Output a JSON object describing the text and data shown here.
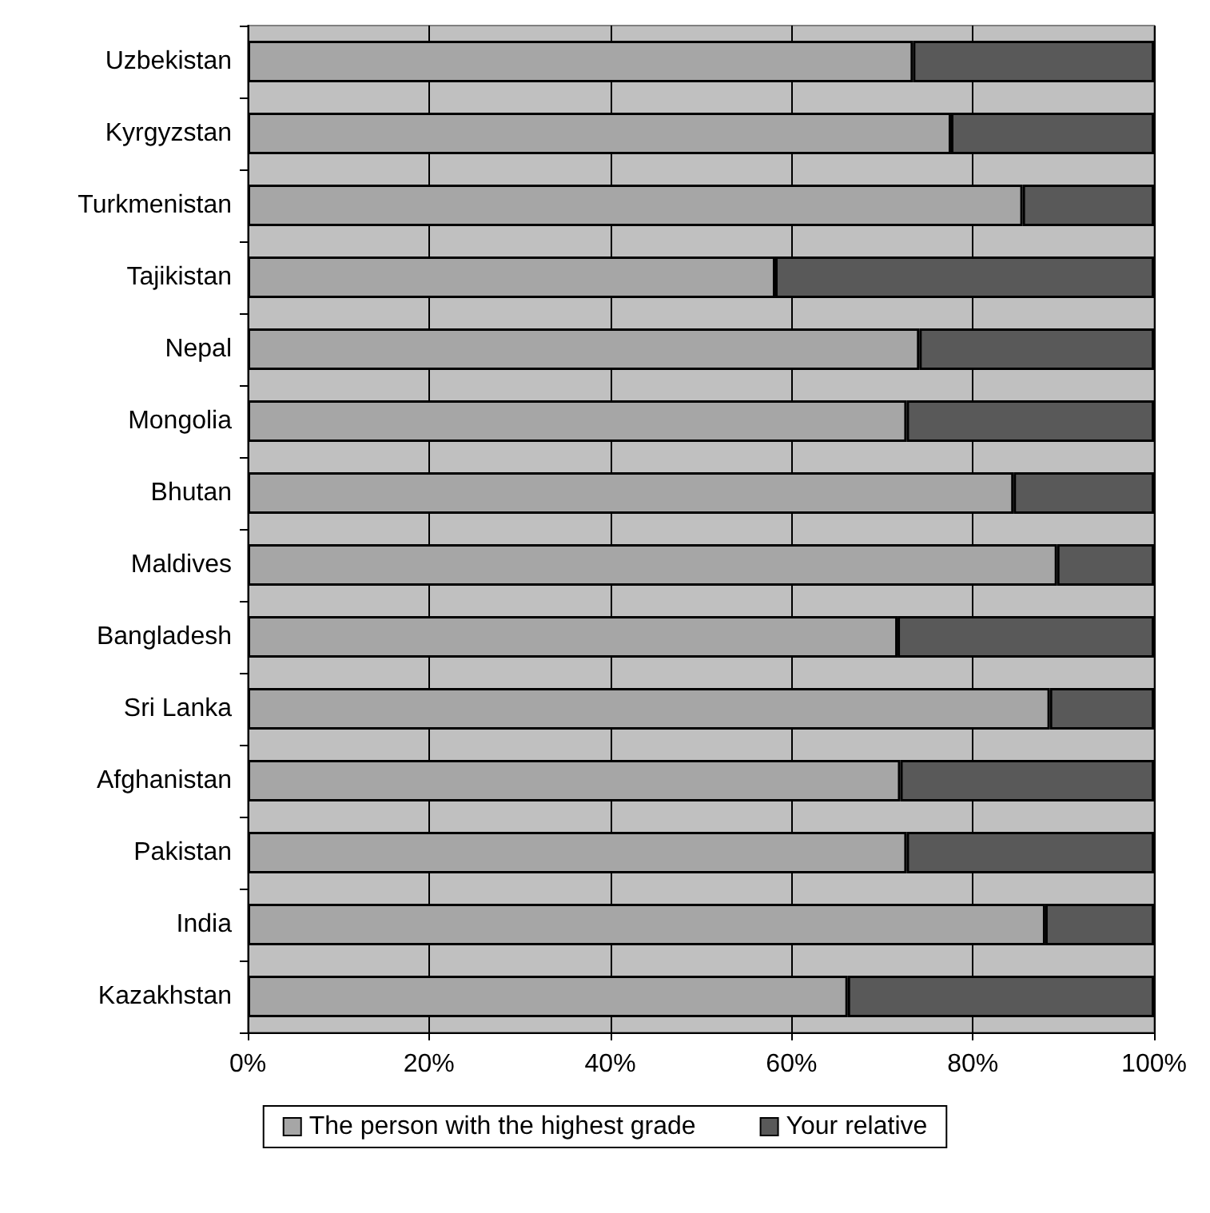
{
  "chart_data": {
    "type": "bar",
    "orientation": "horizontal",
    "stacked": true,
    "categories": [
      "Uzbekistan",
      "Kyrgyzstan",
      "Turkmenistan",
      "Tajikistan",
      "Nepal",
      "Mongolia",
      "Bhutan",
      "Maldives",
      "Bangladesh",
      "Sri Lanka",
      "Afghanistan",
      "Pakistan",
      "India",
      "Kazakhstan"
    ],
    "series": [
      {
        "name": "The person with the highest grade",
        "color": "#a6a6a6",
        "values": [
          73.4,
          77.6,
          85.5,
          58.2,
          74.1,
          72.7,
          84.5,
          89.3,
          71.7,
          88.5,
          72.0,
          72.7,
          88.0,
          66.2
        ]
      },
      {
        "name": "Your relative",
        "color": "#595959",
        "values": [
          26.6,
          22.4,
          14.5,
          41.8,
          25.9,
          27.3,
          15.5,
          10.7,
          28.3,
          11.5,
          28.0,
          27.3,
          12.0,
          33.8
        ]
      }
    ],
    "xlim": [
      0,
      100
    ],
    "xticks": [
      {
        "value": 0,
        "label": "0%"
      },
      {
        "value": 20,
        "label": "20%"
      },
      {
        "value": 40,
        "label": "40%"
      },
      {
        "value": 60,
        "label": "60%"
      },
      {
        "value": 80,
        "label": "80%"
      },
      {
        "value": 100,
        "label": "100%"
      }
    ],
    "grid": "x",
    "legend": "bottom"
  }
}
